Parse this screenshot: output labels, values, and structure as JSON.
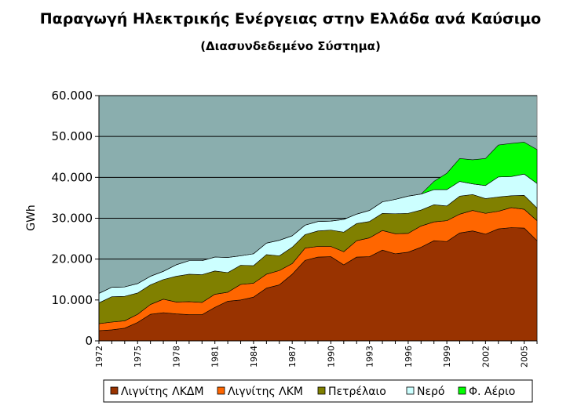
{
  "chart_data": {
    "type": "area",
    "stacked": true,
    "title": "Παραγωγή Ηλεκτρικής Ενέργειας στην Ελλάδα ανά Καύσιμο",
    "subtitle": "(Διασυνδεδεμένο Σύστημα)",
    "xlabel": "",
    "ylabel": "GWh",
    "ylim": [
      0,
      60000
    ],
    "yticks": [
      0,
      10000,
      20000,
      30000,
      40000,
      50000,
      60000
    ],
    "ytick_labels": [
      "0",
      "10.000",
      "20.000",
      "30.000",
      "40.000",
      "50.000",
      "60.000"
    ],
    "xlim": [
      1972,
      2006
    ],
    "xtick_labels": [
      "1972",
      "1975",
      "1978",
      "1981",
      "1984",
      "1987",
      "1990",
      "1993",
      "1996",
      "1999",
      "2002",
      "2005"
    ],
    "grid": true,
    "legend_position": "bottom",
    "plot_background": "#8aaeae",
    "x": [
      1972,
      1973,
      1974,
      1975,
      1976,
      1977,
      1978,
      1979,
      1980,
      1981,
      1982,
      1983,
      1984,
      1985,
      1986,
      1987,
      1988,
      1989,
      1990,
      1991,
      1992,
      1993,
      1994,
      1995,
      1996,
      1997,
      1998,
      1999,
      2000,
      2001,
      2002,
      2003,
      2004,
      2005,
      2006
    ],
    "series": [
      {
        "name": "Λιγνίτης ΛΚΔΜ",
        "color": "#993300",
        "values": [
          2500,
          2700,
          3100,
          4500,
          6500,
          6900,
          6600,
          6400,
          6400,
          8200,
          9700,
          10000,
          10700,
          12900,
          13700,
          16300,
          19700,
          20500,
          20600,
          18600,
          20500,
          20600,
          22200,
          21300,
          21700,
          22900,
          24500,
          24300,
          26400,
          26900,
          26100,
          27400,
          27700,
          27600,
          24500
        ]
      },
      {
        "name": "Λιγνίτης ΛΚΜ",
        "color": "#ff6600",
        "values": [
          1700,
          1900,
          1800,
          2000,
          2400,
          3300,
          2900,
          3200,
          3000,
          3200,
          2200,
          3800,
          3400,
          3400,
          3500,
          2600,
          3000,
          2600,
          2500,
          3200,
          4000,
          4600,
          4800,
          4900,
          4600,
          5200,
          4600,
          5100,
          4600,
          5000,
          5100,
          4300,
          4900,
          4600,
          4900
        ]
      },
      {
        "name": "Πετρέλαιο",
        "color": "#808000",
        "values": [
          5100,
          6200,
          6000,
          5200,
          4800,
          4800,
          6300,
          6700,
          6800,
          5700,
          4800,
          4700,
          4300,
          4800,
          3600,
          4000,
          3300,
          3800,
          4000,
          4800,
          4200,
          4000,
          4200,
          4900,
          4900,
          3900,
          4200,
          3600,
          4400,
          3900,
          3600,
          3500,
          2900,
          3400,
          3100
        ]
      },
      {
        "name": "Νερό",
        "color": "#ccffff",
        "values": [
          2300,
          2300,
          2300,
          2300,
          2100,
          2000,
          2800,
          3300,
          3400,
          3400,
          3700,
          2300,
          2900,
          2800,
          3800,
          2800,
          2300,
          2300,
          2200,
          3100,
          2300,
          2700,
          2800,
          3500,
          4200,
          3900,
          3700,
          4000,
          3600,
          2600,
          3200,
          4900,
          4700,
          5200,
          6000
        ]
      },
      {
        "name": "Φ. Αέριο",
        "color": "#00ff00",
        "values": [
          0,
          0,
          0,
          0,
          0,
          0,
          0,
          0,
          0,
          0,
          0,
          0,
          0,
          0,
          0,
          0,
          0,
          0,
          0,
          0,
          0,
          0,
          0,
          0,
          0,
          0,
          2000,
          4000,
          5600,
          5900,
          6600,
          7800,
          8100,
          7800,
          8300
        ]
      }
    ]
  }
}
